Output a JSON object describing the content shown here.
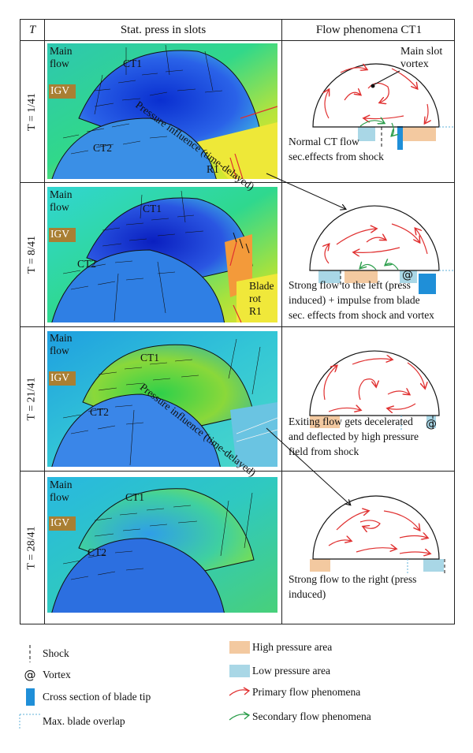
{
  "headers": {
    "t": "T",
    "stat": "Stat. press in slots",
    "flow": "Flow phenomena CT1"
  },
  "rows": [
    {
      "t_label": "T = 1/41",
      "desc": [
        "Normal CT flow",
        "sec.effects from shock"
      ]
    },
    {
      "t_label": "T = 8/41",
      "desc": [
        "Strong flow to the left (press",
        "induced) + impulse from blade",
        "sec. effects from shock and vortex"
      ]
    },
    {
      "t_label": "T = 21/41",
      "desc": [
        "Exiting flow gets decelerated",
        "and deflected by high pressure",
        "field from shock"
      ]
    },
    {
      "t_label": "T = 28/41",
      "desc": [
        "Strong flow to the right (press",
        "induced)"
      ]
    }
  ],
  "sim_labels": {
    "main_flow": [
      "Main",
      "flow"
    ],
    "igv": "IGV",
    "ct1": "CT1",
    "ct2": "CT2",
    "r1": "R1",
    "blade_rot": [
      "Blade",
      "rot"
    ],
    "pressure_influence": "Pressure influence (time-delayed)"
  },
  "annotations": {
    "main_slot_vortex": [
      "Main slot",
      "vortex"
    ]
  },
  "legend": {
    "shock": "Shock",
    "vortex": "Vortex",
    "blade_tip": "Cross section of blade tip",
    "max_overlap": "Max. blade overlap",
    "high_pressure": "High pressure area",
    "low_pressure": "Low pressure area",
    "primary": "Primary flow phenomena",
    "secondary": "Secondary flow phenomena"
  },
  "colors": {
    "high_pressure": "#f3c9a0",
    "low_pressure": "#a9d7e6",
    "primary_flow": "#e03030",
    "secondary_flow": "#2a9d4a",
    "blade_tip": "#1f8fd8",
    "igv": "#a97f33"
  }
}
